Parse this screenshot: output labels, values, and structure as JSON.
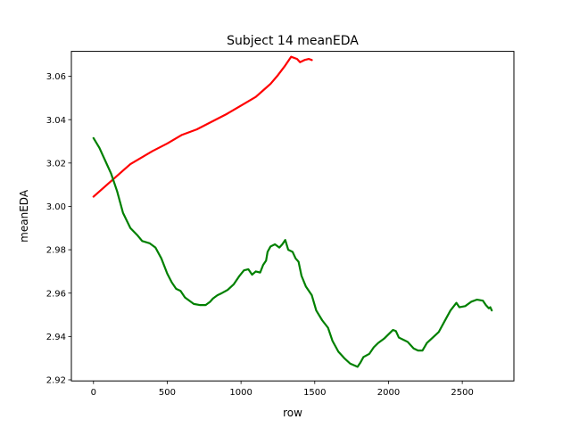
{
  "chart_data": {
    "type": "line",
    "title": "Subject 14 meanEDA",
    "xlabel": "row",
    "ylabel": "meanEDA",
    "xlim": [
      -150,
      2850
    ],
    "ylim": [
      2.9195,
      3.0715
    ],
    "xticks": [
      0,
      500,
      1000,
      1500,
      2000,
      2500
    ],
    "yticks": [
      2.92,
      2.94,
      2.96,
      2.98,
      3.0,
      3.02,
      3.04,
      3.06
    ],
    "grid": false,
    "legend": "none",
    "series": [
      {
        "color": "#ff0000",
        "points": [
          [
            0,
            3.0045
          ],
          [
            100,
            3.0105
          ],
          [
            200,
            3.0165
          ],
          [
            250,
            3.0195
          ],
          [
            300,
            3.0215
          ],
          [
            350,
            3.0235
          ],
          [
            400,
            3.0255
          ],
          [
            500,
            3.029
          ],
          [
            550,
            3.031
          ],
          [
            600,
            3.033
          ],
          [
            700,
            3.0355
          ],
          [
            800,
            3.039
          ],
          [
            900,
            3.0425
          ],
          [
            1000,
            3.0465
          ],
          [
            1050,
            3.0485
          ],
          [
            1100,
            3.0505
          ],
          [
            1150,
            3.0535
          ],
          [
            1200,
            3.0565
          ],
          [
            1250,
            3.0605
          ],
          [
            1300,
            3.065
          ],
          [
            1340,
            3.069
          ],
          [
            1380,
            3.068
          ],
          [
            1400,
            3.0665
          ],
          [
            1430,
            3.0675
          ],
          [
            1460,
            3.068
          ],
          [
            1480,
            3.0675
          ]
        ]
      },
      {
        "color": "#008000",
        "points": [
          [
            0,
            3.0315
          ],
          [
            40,
            3.027
          ],
          [
            80,
            3.021
          ],
          [
            120,
            3.015
          ],
          [
            160,
            3.007
          ],
          [
            200,
            2.997
          ],
          [
            250,
            2.99
          ],
          [
            300,
            2.9865
          ],
          [
            330,
            2.984
          ],
          [
            380,
            2.983
          ],
          [
            420,
            2.981
          ],
          [
            460,
            2.976
          ],
          [
            500,
            2.969
          ],
          [
            530,
            2.965
          ],
          [
            560,
            2.962
          ],
          [
            590,
            2.961
          ],
          [
            620,
            2.958
          ],
          [
            680,
            2.955
          ],
          [
            720,
            2.9545
          ],
          [
            760,
            2.9545
          ],
          [
            790,
            2.956
          ],
          [
            810,
            2.9575
          ],
          [
            840,
            2.959
          ],
          [
            870,
            2.96
          ],
          [
            910,
            2.9615
          ],
          [
            950,
            2.964
          ],
          [
            990,
            2.968
          ],
          [
            1020,
            2.9705
          ],
          [
            1050,
            2.971
          ],
          [
            1075,
            2.9685
          ],
          [
            1100,
            2.97
          ],
          [
            1130,
            2.9695
          ],
          [
            1150,
            2.973
          ],
          [
            1170,
            2.975
          ],
          [
            1180,
            2.979
          ],
          [
            1200,
            2.9815
          ],
          [
            1230,
            2.9825
          ],
          [
            1260,
            2.981
          ],
          [
            1280,
            2.9825
          ],
          [
            1300,
            2.9845
          ],
          [
            1320,
            2.98
          ],
          [
            1350,
            2.979
          ],
          [
            1370,
            2.976
          ],
          [
            1390,
            2.9745
          ],
          [
            1410,
            2.968
          ],
          [
            1440,
            2.963
          ],
          [
            1480,
            2.959
          ],
          [
            1510,
            2.952
          ],
          [
            1550,
            2.9475
          ],
          [
            1590,
            2.944
          ],
          [
            1620,
            2.938
          ],
          [
            1660,
            2.933
          ],
          [
            1700,
            2.93
          ],
          [
            1740,
            2.9275
          ],
          [
            1790,
            2.926
          ],
          [
            1810,
            2.928
          ],
          [
            1830,
            2.9305
          ],
          [
            1870,
            2.932
          ],
          [
            1900,
            2.935
          ],
          [
            1930,
            2.937
          ],
          [
            1970,
            2.939
          ],
          [
            2000,
            2.941
          ],
          [
            2030,
            2.943
          ],
          [
            2050,
            2.9425
          ],
          [
            2070,
            2.9395
          ],
          [
            2100,
            2.9385
          ],
          [
            2130,
            2.9375
          ],
          [
            2170,
            2.9345
          ],
          [
            2200,
            2.9335
          ],
          [
            2230,
            2.9335
          ],
          [
            2260,
            2.937
          ],
          [
            2300,
            2.9395
          ],
          [
            2340,
            2.942
          ],
          [
            2380,
            2.947
          ],
          [
            2420,
            2.952
          ],
          [
            2460,
            2.9555
          ],
          [
            2480,
            2.9535
          ],
          [
            2520,
            2.954
          ],
          [
            2560,
            2.956
          ],
          [
            2600,
            2.957
          ],
          [
            2640,
            2.9565
          ],
          [
            2660,
            2.9545
          ],
          [
            2680,
            2.953
          ],
          [
            2690,
            2.9535
          ],
          [
            2700,
            2.952
          ]
        ]
      }
    ]
  }
}
